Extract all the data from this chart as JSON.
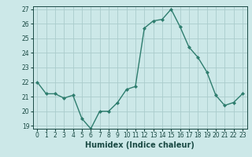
{
  "x": [
    0,
    1,
    2,
    3,
    4,
    5,
    6,
    7,
    8,
    9,
    10,
    11,
    12,
    13,
    14,
    15,
    16,
    17,
    18,
    19,
    20,
    21,
    22,
    23
  ],
  "y": [
    22.0,
    21.2,
    21.2,
    20.9,
    21.1,
    19.5,
    18.8,
    20.0,
    20.0,
    20.6,
    21.5,
    21.7,
    25.7,
    26.2,
    26.3,
    27.0,
    25.8,
    24.4,
    23.7,
    22.7,
    21.1,
    20.4,
    20.6,
    21.2
  ],
  "line_color": "#2e7d6e",
  "marker": "D",
  "markersize": 2.0,
  "linewidth": 1.0,
  "bg_color": "#cce8e8",
  "grid_color": "#aacccc",
  "xlabel": "Humidex (Indice chaleur)",
  "xlim": [
    -0.5,
    23.5
  ],
  "ylim": [
    18.8,
    27.2
  ],
  "yticks": [
    19,
    20,
    21,
    22,
    23,
    24,
    25,
    26,
    27
  ],
  "xticks": [
    0,
    1,
    2,
    3,
    4,
    5,
    6,
    7,
    8,
    9,
    10,
    11,
    12,
    13,
    14,
    15,
    16,
    17,
    18,
    19,
    20,
    21,
    22,
    23
  ],
  "tick_label_color": "#1a4a44",
  "tick_label_fontsize": 5.5,
  "xlabel_fontsize": 7.0,
  "xlabel_color": "#1a4a44"
}
